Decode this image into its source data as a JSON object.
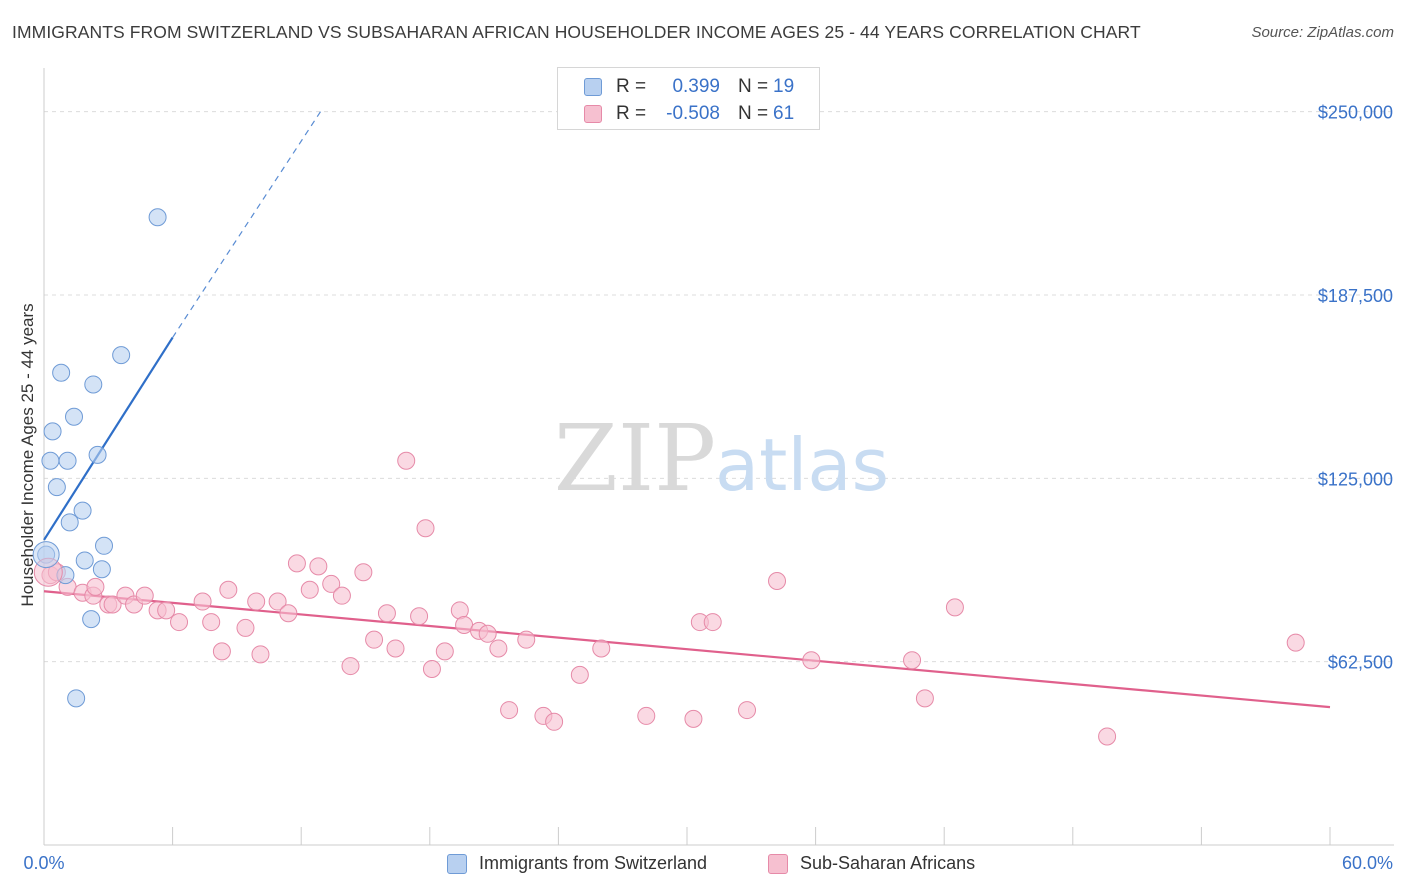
{
  "title": "IMMIGRANTS FROM SWITZERLAND VS SUBSAHARAN AFRICAN HOUSEHOLDER INCOME AGES 25 - 44 YEARS CORRELATION CHART",
  "source": "Source: ZipAtlas.com",
  "watermark": {
    "zip": "ZIP",
    "atlas": "atlas"
  },
  "colors": {
    "blue_fill": "#b8d0f0",
    "blue_stroke": "#6f9bd6",
    "blue_line": "#2f6fc8",
    "pink_fill": "#f6c0d0",
    "pink_stroke": "#e68aa8",
    "pink_line": "#e0608c",
    "axis_text": "#3a72c8",
    "grid": "#dcdcdc"
  },
  "legend_top": [
    {
      "r_label": "R =",
      "r_value": "0.399",
      "n_label": "N =",
      "n_value": "19",
      "color": "blue"
    },
    {
      "r_label": "R =",
      "r_value": "-0.508",
      "n_label": "N =",
      "n_value": "61",
      "color": "pink"
    }
  ],
  "chart_data": {
    "type": "scatter",
    "title": "IMMIGRANTS FROM SWITZERLAND VS SUBSAHARAN AFRICAN HOUSEHOLDER INCOME AGES 25 - 44 YEARS CORRELATION CHART",
    "xlabel": "",
    "ylabel": "Householder Income Ages 25 - 44 years",
    "xlim": [
      0,
      60
    ],
    "ylim": [
      0,
      262500
    ],
    "x_tick_labels": [
      "0.0%",
      "60.0%"
    ],
    "y_ticks": [
      62500,
      125000,
      187500,
      250000
    ],
    "y_tick_labels": [
      "$62,500",
      "$125,000",
      "$187,500",
      "$250,000"
    ],
    "grid": true,
    "legend": "bottom",
    "series": [
      {
        "name": "Immigrants from Switzerland",
        "color": "#b8d0f0",
        "points": [
          [
            0.1,
            99000
          ],
          [
            0.3,
            131000
          ],
          [
            0.4,
            141000
          ],
          [
            0.6,
            122000
          ],
          [
            0.8,
            161000
          ],
          [
            1.0,
            92000
          ],
          [
            1.1,
            131000
          ],
          [
            1.2,
            110000
          ],
          [
            1.4,
            146000
          ],
          [
            1.5,
            50000
          ],
          [
            1.8,
            114000
          ],
          [
            1.9,
            97000
          ],
          [
            2.2,
            77000
          ],
          [
            2.3,
            157000
          ],
          [
            2.5,
            133000
          ],
          [
            2.7,
            94000
          ],
          [
            2.8,
            102000
          ],
          [
            3.6,
            167000
          ],
          [
            5.3,
            214000
          ]
        ],
        "trend": {
          "x": [
            0,
            6
          ],
          "y": [
            104000,
            173000
          ],
          "dashed_to": [
            12.9,
            250000
          ]
        }
      },
      {
        "name": "Sub-Saharan Africans",
        "color": "#f6c0d0",
        "points": [
          [
            0.3,
            92000
          ],
          [
            0.6,
            93000
          ],
          [
            1.1,
            88000
          ],
          [
            1.8,
            86000
          ],
          [
            2.3,
            85000
          ],
          [
            2.4,
            88000
          ],
          [
            3.0,
            82000
          ],
          [
            3.2,
            82000
          ],
          [
            3.8,
            85000
          ],
          [
            4.2,
            82000
          ],
          [
            4.7,
            85000
          ],
          [
            5.3,
            80000
          ],
          [
            5.7,
            80000
          ],
          [
            6.3,
            76000
          ],
          [
            7.4,
            83000
          ],
          [
            7.8,
            76000
          ],
          [
            8.3,
            66000
          ],
          [
            8.6,
            87000
          ],
          [
            9.4,
            74000
          ],
          [
            9.9,
            83000
          ],
          [
            10.1,
            65000
          ],
          [
            10.9,
            83000
          ],
          [
            11.4,
            79000
          ],
          [
            11.8,
            96000
          ],
          [
            12.4,
            87000
          ],
          [
            12.8,
            95000
          ],
          [
            13.4,
            89000
          ],
          [
            13.9,
            85000
          ],
          [
            14.3,
            61000
          ],
          [
            14.9,
            93000
          ],
          [
            15.4,
            70000
          ],
          [
            16.0,
            79000
          ],
          [
            16.4,
            67000
          ],
          [
            16.9,
            131000
          ],
          [
            17.5,
            78000
          ],
          [
            17.8,
            108000
          ],
          [
            18.1,
            60000
          ],
          [
            18.7,
            66000
          ],
          [
            19.4,
            80000
          ],
          [
            19.6,
            75000
          ],
          [
            20.3,
            73000
          ],
          [
            20.7,
            72000
          ],
          [
            21.2,
            67000
          ],
          [
            21.7,
            46000
          ],
          [
            22.5,
            70000
          ],
          [
            23.3,
            44000
          ],
          [
            23.8,
            42000
          ],
          [
            25.0,
            58000
          ],
          [
            26.0,
            67000
          ],
          [
            28.1,
            44000
          ],
          [
            30.3,
            43000
          ],
          [
            30.6,
            76000
          ],
          [
            31.2,
            76000
          ],
          [
            32.8,
            46000
          ],
          [
            34.2,
            90000
          ],
          [
            35.8,
            63000
          ],
          [
            40.5,
            63000
          ],
          [
            41.1,
            50000
          ],
          [
            42.5,
            81000
          ],
          [
            49.6,
            37000
          ],
          [
            58.4,
            69000
          ]
        ],
        "trend": {
          "x": [
            0,
            60
          ],
          "y": [
            86500,
            47000
          ]
        }
      }
    ]
  }
}
